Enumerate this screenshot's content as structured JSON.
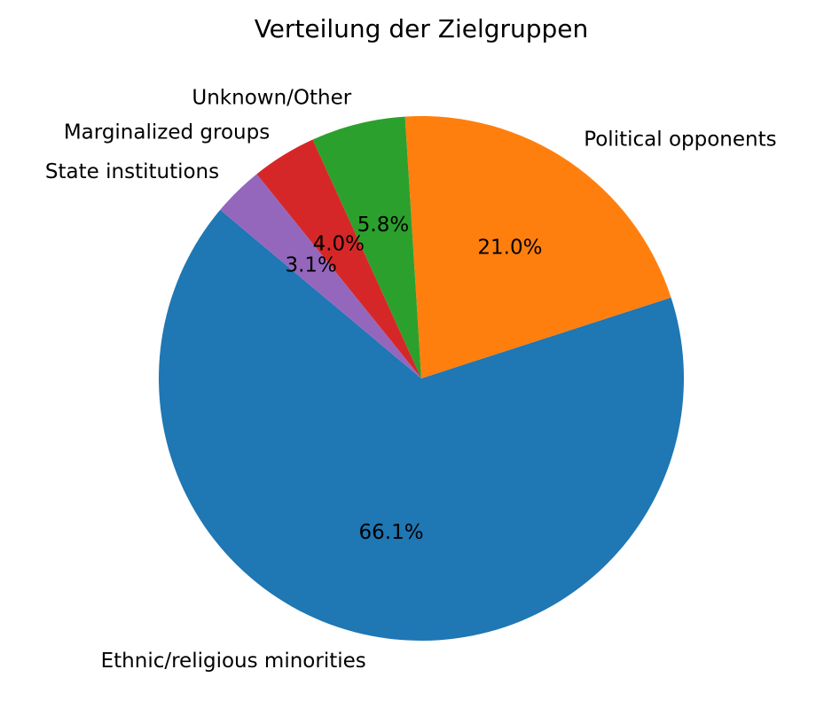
{
  "chart_data": {
    "type": "pie",
    "title": "Verteilung der Zielgruppen",
    "categories": [
      "Ethnic/religious minorities",
      "Political opponents",
      "Unknown/Other",
      "Marginalized groups",
      "State institutions"
    ],
    "values": [
      66.1,
      21.0,
      5.8,
      4.0,
      3.1
    ],
    "value_labels": [
      "66.1%",
      "21.0%",
      "5.8%",
      "4.0%",
      "3.1%"
    ],
    "colors": [
      "#1f77b4",
      "#ff7f0e",
      "#2ca02c",
      "#d62728",
      "#9467bd"
    ],
    "legend": false
  }
}
